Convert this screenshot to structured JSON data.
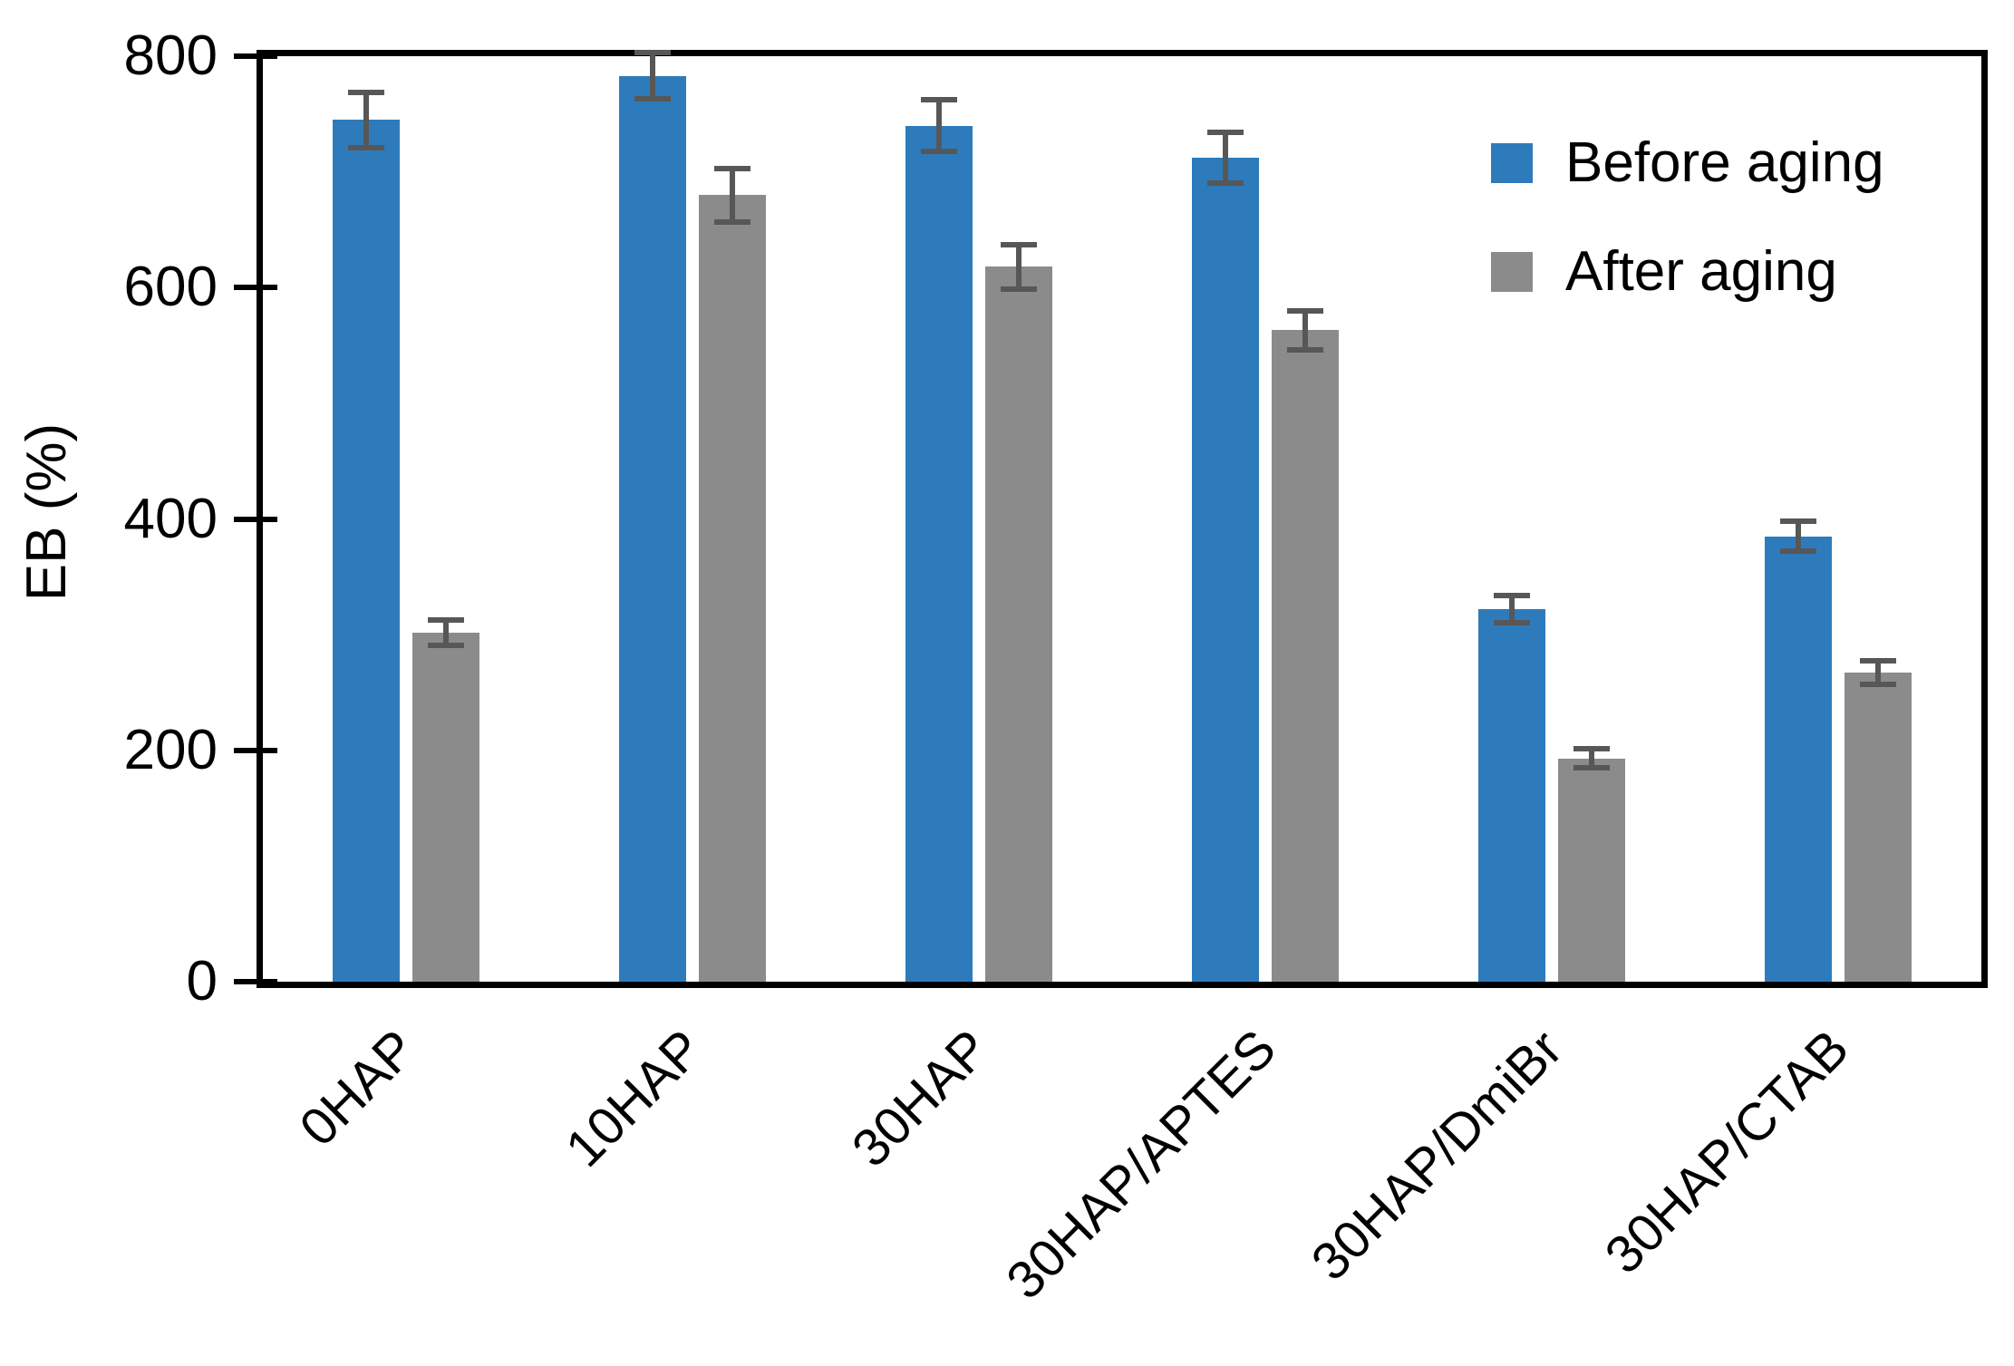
{
  "figure": {
    "background": "#ffffff",
    "axis_color": "#000000"
  },
  "colors": {
    "before": "#2e7bbc",
    "after": "#8b8b8b",
    "error_bar": "#575757"
  },
  "legend": {
    "items": [
      {
        "label": "Before aging",
        "color": "#2e7bbc"
      },
      {
        "label": "After aging",
        "color": "#8b8b8b"
      }
    ]
  },
  "chart_data": {
    "type": "bar",
    "title": "",
    "xlabel": "",
    "ylabel": "EB (%)",
    "ylim": [
      0,
      800
    ],
    "yticks": [
      0,
      200,
      400,
      600,
      800
    ],
    "grid": false,
    "legend_position": "top-right-inside",
    "categories": [
      "0HAP",
      "10HAP",
      "30HAP",
      "30HAP/APTES",
      "30HAP/DmiBr",
      "30HAP/CTAB"
    ],
    "series": [
      {
        "name": "Before aging",
        "color": "#2e7bbc",
        "values": [
          745,
          783,
          740,
          712,
          322,
          385
        ],
        "errors": [
          24,
          20,
          22,
          22,
          12,
          13
        ]
      },
      {
        "name": "After aging",
        "color": "#8b8b8b",
        "values": [
          302,
          680,
          618,
          563,
          193,
          267
        ],
        "errors": [
          11,
          23,
          19,
          17,
          8,
          10
        ]
      }
    ],
    "error_bar_color": "#575757"
  }
}
